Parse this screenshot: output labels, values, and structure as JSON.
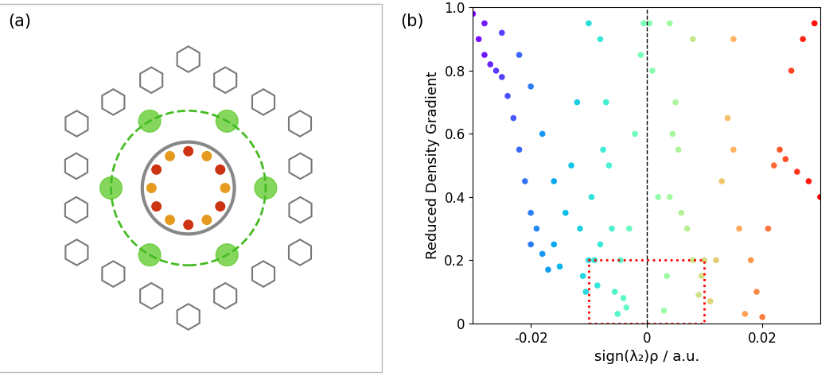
{
  "image_panel": {
    "label": "(a)"
  },
  "chart_data": {
    "type": "scatter",
    "panel_label": "(b)",
    "x_label": "sign(λ₂)ρ / a.u.",
    "y_label": "Reduced Density Gradient",
    "x": [
      -0.03,
      -0.029,
      -0.028,
      -0.027,
      -0.026,
      -0.025,
      -0.024,
      -0.023,
      -0.022,
      -0.021,
      -0.02,
      -0.02,
      -0.019,
      -0.018,
      -0.017,
      -0.016,
      -0.015,
      -0.028,
      -0.025,
      -0.022,
      -0.02,
      -0.018,
      -0.016,
      -0.014,
      -0.013,
      -0.012,
      -0.0115,
      -0.011,
      -0.0105,
      -0.01,
      -0.0095,
      -0.009,
      -0.0085,
      -0.008,
      -0.0075,
      -0.007,
      -0.0065,
      -0.006,
      -0.0055,
      -0.005,
      -0.0045,
      -0.004,
      -0.0035,
      -0.003,
      -0.002,
      -0.001,
      -0.0005,
      0.0005,
      0.001,
      0.002,
      0.003,
      0.0035,
      0.004,
      0.0045,
      0.005,
      0.0055,
      0.006,
      0.007,
      0.008,
      0.009,
      0.0095,
      0.01,
      0.011,
      0.012,
      0.013,
      0.014,
      0.015,
      0.016,
      0.017,
      0.018,
      0.019,
      0.02,
      0.021,
      0.022,
      0.023,
      0.024,
      0.026,
      0.028,
      0.03,
      0.025,
      0.027,
      0.029,
      0.015,
      0.008,
      0.004,
      -0.008,
      -0.01
    ],
    "values": [
      0.98,
      0.9,
      0.85,
      0.82,
      0.8,
      0.78,
      0.72,
      0.65,
      0.55,
      0.45,
      0.35,
      0.25,
      0.3,
      0.22,
      0.17,
      0.25,
      0.18,
      0.95,
      0.92,
      0.85,
      0.75,
      0.6,
      0.45,
      0.35,
      0.5,
      0.7,
      0.3,
      0.15,
      0.1,
      0.2,
      0.4,
      0.2,
      0.12,
      0.25,
      0.55,
      0.7,
      0.5,
      0.3,
      0.1,
      0.03,
      0.2,
      0.08,
      0.05,
      0.3,
      0.6,
      0.85,
      0.95,
      0.95,
      0.8,
      0.4,
      0.04,
      0.15,
      0.4,
      0.6,
      0.7,
      0.55,
      0.35,
      0.3,
      0.2,
      0.09,
      0.15,
      0.2,
      0.07,
      0.2,
      0.45,
      0.65,
      0.55,
      0.3,
      0.03,
      0.2,
      0.1,
      0.02,
      0.3,
      0.5,
      0.55,
      0.52,
      0.48,
      0.45,
      0.4,
      0.8,
      0.9,
      0.95,
      0.9,
      0.9,
      0.95,
      0.9,
      0.95
    ],
    "xlim": [
      -0.03,
      0.03
    ],
    "xticks": [
      -0.02,
      0,
      0.02
    ],
    "ylim": [
      0,
      1.0
    ],
    "yticks": [
      0,
      0.2,
      0.4,
      0.6,
      0.8,
      1.0
    ],
    "vline": 0,
    "highlight": {
      "x": [
        -0.01,
        0.01
      ],
      "y": [
        0,
        0.2
      ]
    }
  }
}
